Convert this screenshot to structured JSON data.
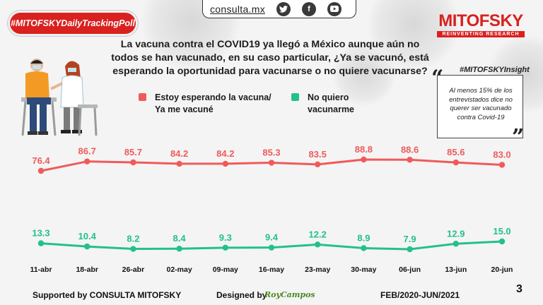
{
  "header": {
    "hashtag": "#MITOFSKYDailyTrackingPoll",
    "site_url": "consulta.mx",
    "social_icons": [
      "twitter-icon",
      "facebook-icon",
      "youtube-icon"
    ],
    "logo_brand": "MITOFSKY",
    "logo_tagline": "REINVENTING RESEARCH"
  },
  "question": "La vacuna contra el COVID19 ya llegó a México aunque aún no todos se han vacunado, en su caso particular, ¿Ya se vacunó, está esperando la oportunidad para vacunarse o no quiere vacunarse?",
  "insight": {
    "tag": "#MITOFSKYInsight",
    "text": "Al menos 15% de los entrevistados dice no querer ser vacunado contra Covid-19"
  },
  "legend": [
    {
      "line1": "Estoy esperando la vacuna/",
      "line2": "Ya me vacuné",
      "color": "#f05a5a"
    },
    {
      "line1": "No quiero",
      "line2": "vacunarme",
      "color": "#22c08e"
    }
  ],
  "chart_data": {
    "type": "line",
    "categories": [
      "11-abr",
      "18-abr",
      "26-abr",
      "02-may",
      "09-may",
      "16-may",
      "23-may",
      "30-may",
      "06-jun",
      "13-jun",
      "20-jun"
    ],
    "series": [
      {
        "name": "Estoy esperando la vacuna/ Ya me vacuné",
        "color": "#f05a5a",
        "values": [
          76.4,
          86.7,
          85.7,
          84.2,
          84.2,
          85.3,
          83.5,
          88.8,
          88.6,
          85.6,
          83.0
        ]
      },
      {
        "name": "No quiero vacunarme",
        "color": "#22c08e",
        "values": [
          13.3,
          10.4,
          8.2,
          8.4,
          9.3,
          9.4,
          12.2,
          8.9,
          7.9,
          12.9,
          15.0
        ]
      }
    ],
    "value_labels": [
      [
        "76.4",
        "86.7",
        "85.7",
        "84.2",
        "84.2",
        "85.3",
        "83.5",
        "88.8",
        "88.6",
        "85.6",
        "83.0"
      ],
      [
        "13.3",
        "10.4",
        "8.2",
        "8.4",
        "9.3",
        "9.4",
        "12.2",
        "8.9",
        "7.9",
        "12.9",
        "15.0"
      ]
    ],
    "grid": false,
    "legend_position": "top"
  },
  "footer": {
    "supported": "Supported by  CONSULTA  MITOFSKY",
    "designed": "Designed by",
    "designer": "RoyCampos",
    "period": "FEB/2020-JUN/2021",
    "page": "3"
  }
}
